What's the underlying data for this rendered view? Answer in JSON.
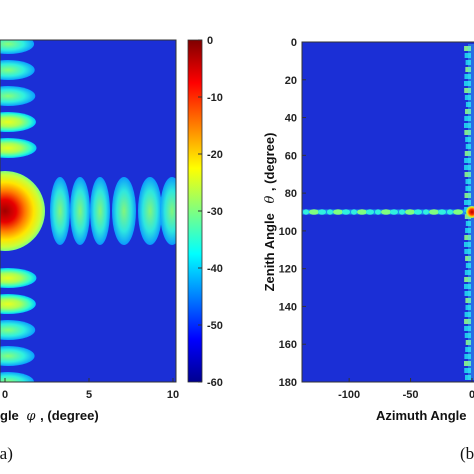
{
  "chart_data": [
    {
      "type": "heatmap",
      "panel_label": "(a)",
      "xlabel_prefix": "gle",
      "xlabel_symbol": "φ",
      "xlabel_suffix": ", (degree)",
      "xlim": [
        -10,
        10
      ],
      "x_ticks": [
        "0",
        "5",
        "10"
      ],
      "colorbar": {
        "vmin": -60,
        "vmax": 0,
        "ticks": [
          "0",
          "-10",
          "-20",
          "-30",
          "-40",
          "-50",
          "-60"
        ],
        "colormap": "jet"
      },
      "background_db": -60,
      "main_lobe": {
        "phi": 0,
        "db": 0
      },
      "sidelobe_row_phi": [
        5.9,
        9.5
      ],
      "sidelobe_column_db": [
        -30,
        -35,
        -38,
        -40,
        -42,
        -44
      ]
    },
    {
      "type": "heatmap",
      "panel_label": "(b",
      "xlabel": "Azimuth Angle",
      "ylabel_prefix": "Zenith Angle",
      "ylabel_symbol": "θ",
      "ylabel_suffix": ", (degree)",
      "xlim": [
        -140,
        0
      ],
      "ylim": [
        0,
        180
      ],
      "x_ticks": [
        "-100",
        "-50",
        "0"
      ],
      "y_ticks": [
        "0",
        "20",
        "40",
        "60",
        "80",
        "100",
        "120",
        "140",
        "160",
        "180"
      ],
      "y_inverted": true,
      "background_db": -60,
      "main_beam": {
        "azimuth": 0,
        "zenith": 90
      },
      "cut_zenith": 90
    }
  ],
  "colors": {
    "background": "#1b2fd6",
    "peak": "#a70000"
  }
}
